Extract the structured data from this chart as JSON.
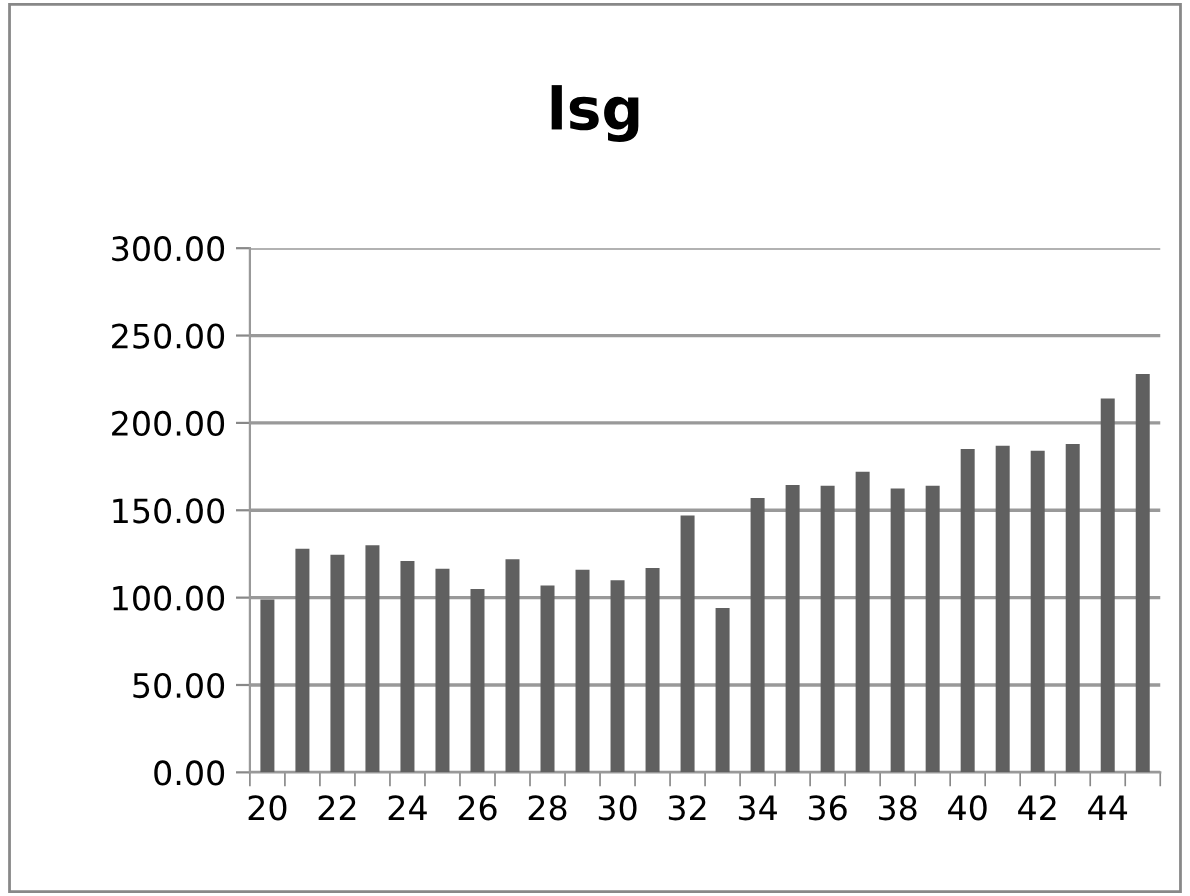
{
  "chart_data": {
    "type": "bar",
    "title": "lsg",
    "categories": [
      "20",
      null,
      "22",
      null,
      "24",
      null,
      "26",
      null,
      "28",
      null,
      "30",
      null,
      "32",
      null,
      "34",
      null,
      "36",
      null,
      "38",
      null,
      "40",
      null,
      "42",
      null,
      "44",
      null
    ],
    "values": [
      99,
      128,
      124.5,
      130,
      121,
      116.5,
      105,
      122,
      107,
      116,
      110,
      117,
      147,
      94,
      157,
      164.5,
      164,
      172,
      162.5,
      164,
      185,
      187,
      184,
      188,
      214,
      228
    ],
    "color": "#606060",
    "ylim": [
      0,
      300
    ],
    "yticks": [
      {
        "value": 0,
        "label": "0.00"
      },
      {
        "value": 50,
        "label": "50.00"
      },
      {
        "value": 100,
        "label": "100.00"
      },
      {
        "value": 150,
        "label": "150.00"
      },
      {
        "value": 200,
        "label": "200.00"
      },
      {
        "value": 250,
        "label": "250.00"
      },
      {
        "value": 300,
        "label": "300.00"
      }
    ],
    "grid": "y",
    "legend": false
  }
}
